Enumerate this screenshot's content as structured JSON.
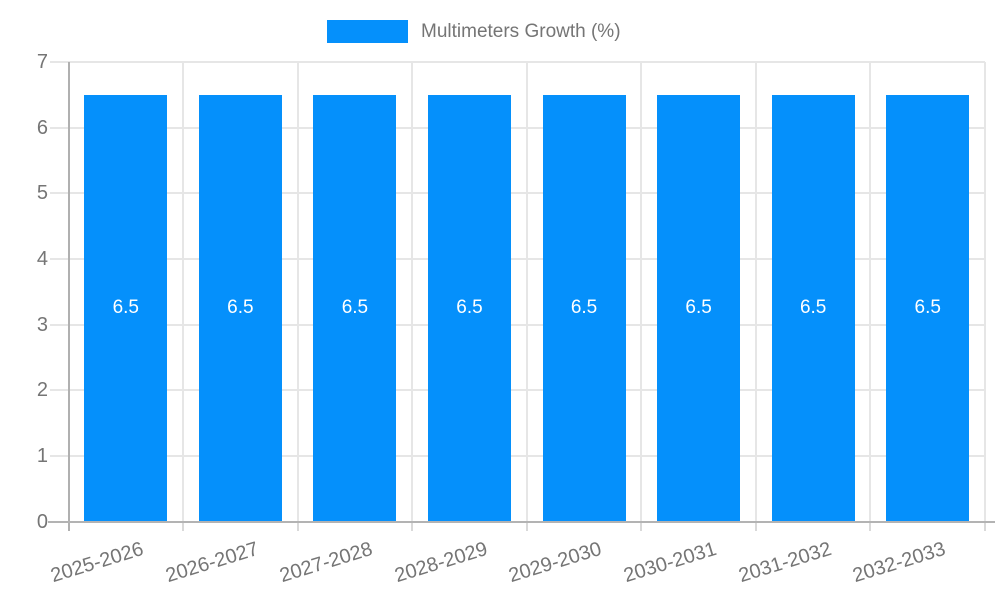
{
  "legend": {
    "label": "Multimeters Growth (%)"
  },
  "colors": {
    "bar": "#0590fb",
    "bar_label": "#ffffff",
    "axis_text": "#757575",
    "gridline": "#e6e6e6",
    "y_axis_line": "#b0b0b0",
    "x_axis_line": "#b3b3b3"
  },
  "chart_data": {
    "type": "bar",
    "title": "Multimeters Growth (%)",
    "categories": [
      "2025-2026",
      "2026-2027",
      "2027-2028",
      "2028-2029",
      "2029-2030",
      "2030-2031",
      "2031-2032",
      "2032-2033"
    ],
    "values": [
      6.5,
      6.5,
      6.5,
      6.5,
      6.5,
      6.5,
      6.5,
      6.5
    ],
    "bar_labels": [
      "6.5",
      "6.5",
      "6.5",
      "6.5",
      "6.5",
      "6.5",
      "6.5",
      "6.5"
    ],
    "xlabel": "",
    "ylabel": "",
    "ylim": [
      0,
      7
    ],
    "yticks": [
      0,
      1,
      2,
      3,
      4,
      5,
      6,
      7
    ],
    "grid": true,
    "legend_position": "top",
    "bar_label_position": "center"
  }
}
